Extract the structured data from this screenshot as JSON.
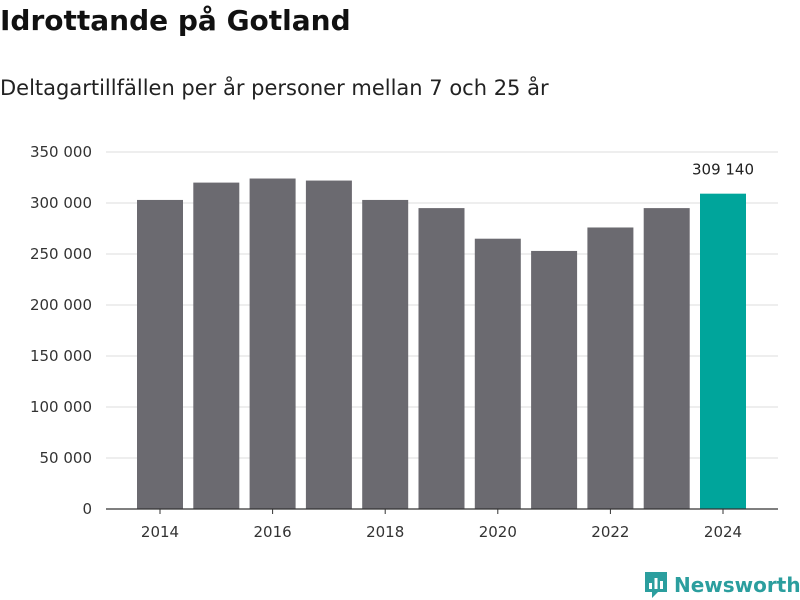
{
  "chart_data": {
    "type": "bar",
    "title": "Idrottande på Gotland",
    "subtitle": "Deltagartillfällen per år personer mellan 7 och 25 år",
    "categories": [
      "2014",
      "2015",
      "2016",
      "2017",
      "2018",
      "2019",
      "2020",
      "2021",
      "2022",
      "2023",
      "2024"
    ],
    "values": [
      303000,
      320000,
      324000,
      322000,
      303000,
      295000,
      265000,
      253000,
      276000,
      295000,
      309140
    ],
    "ylim": [
      0,
      350000
    ],
    "yticks": [
      0,
      50000,
      100000,
      150000,
      200000,
      250000,
      300000,
      350000
    ],
    "ytick_labels": [
      "0",
      "50 000",
      "100 000",
      "150 000",
      "200 000",
      "250 000",
      "300 000",
      "350 000"
    ],
    "xtick_labels": [
      "2014",
      "2016",
      "2018",
      "2020",
      "2022",
      "2024"
    ],
    "highlight_label": "309 140",
    "grid": true,
    "xlabel": "",
    "ylabel": ""
  },
  "colors": {
    "bar": "#6b6a70",
    "highlight": "#00a59b",
    "grid": "#dddddd",
    "axis": "#333333"
  },
  "branding": {
    "name": "Newsworthy",
    "icon": "newsworthy-logo-icon"
  }
}
